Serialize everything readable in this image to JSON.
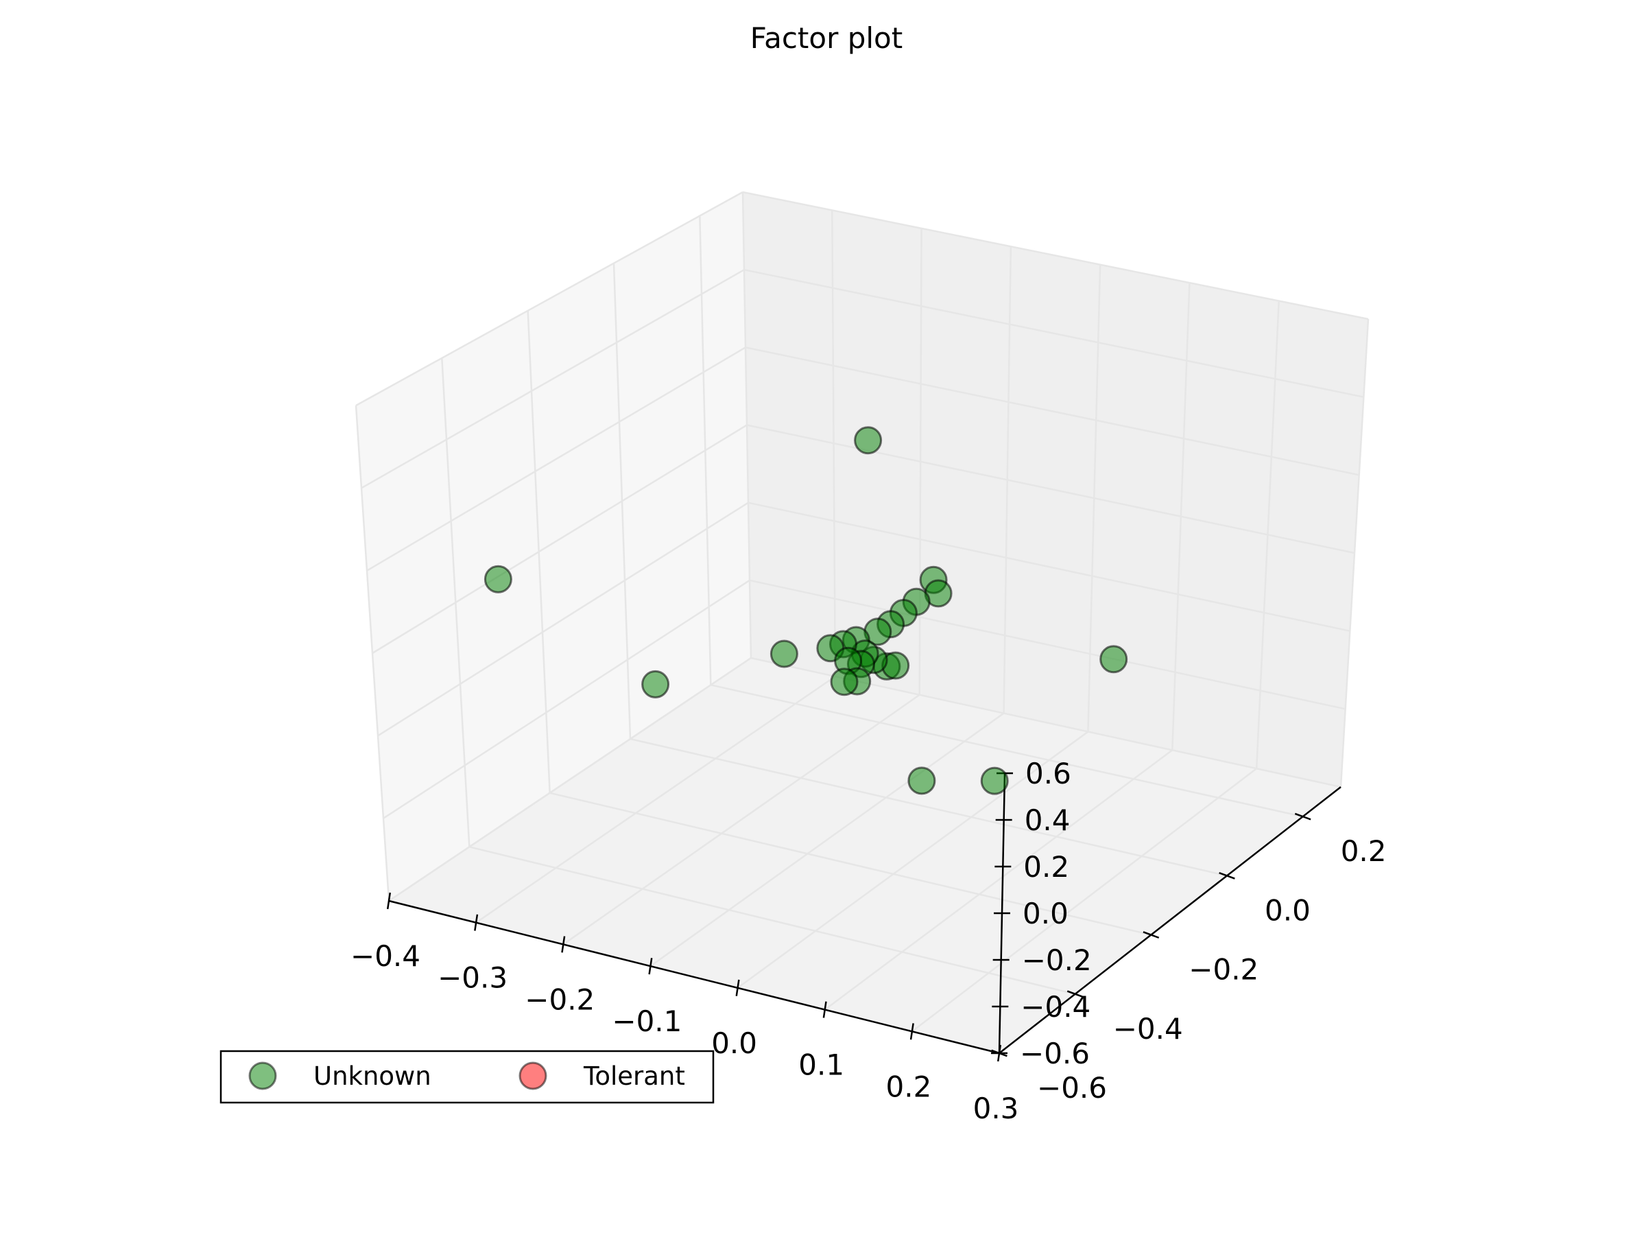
{
  "chart_data": {
    "type": "scatter",
    "projection": "3d",
    "title": "Factor plot",
    "xlim": [
      -0.4,
      0.3
    ],
    "ylim": [
      -0.6,
      0.3
    ],
    "zlim": [
      -0.6,
      0.6
    ],
    "x_ticks": [
      "−0.4",
      "−0.3",
      "−0.2",
      "−0.1",
      "0.0",
      "0.1",
      "0.2",
      "0.3"
    ],
    "y_ticks": [
      "−0.6",
      "−0.4",
      "−0.2",
      "0.0",
      "0.2"
    ],
    "z_ticks": [
      "−0.6",
      "−0.4",
      "−0.2",
      "0.0",
      "0.2",
      "0.4",
      "0.6"
    ],
    "grid": true,
    "legend": {
      "position": "bottom-left",
      "entries": [
        {
          "name": "Unknown",
          "color": "#008000"
        },
        {
          "name": "Tolerant",
          "color": "#ff0000"
        }
      ]
    },
    "series": [
      {
        "name": "Unknown",
        "color": "#008000",
        "alpha": 0.5,
        "points": [
          {
            "x": -0.05,
            "y": -0.15,
            "z": 0.55
          },
          {
            "x": -0.35,
            "y": -0.4,
            "z": 0.1
          },
          {
            "x": -0.1,
            "y": -0.25,
            "z": 0.0
          },
          {
            "x": -0.32,
            "y": -0.1,
            "z": -0.35
          },
          {
            "x": 0.05,
            "y": 0.25,
            "z": -0.35
          },
          {
            "x": 0.1,
            "y": -0.35,
            "z": -0.1
          },
          {
            "x": 0.16,
            "y": -0.3,
            "z": -0.1
          },
          {
            "x": 0.0,
            "y": -0.1,
            "z": 0.15
          },
          {
            "x": 0.01,
            "y": -0.11,
            "z": 0.13
          },
          {
            "x": -0.01,
            "y": -0.12,
            "z": 0.1
          },
          {
            "x": -0.02,
            "y": -0.13,
            "z": 0.07
          },
          {
            "x": -0.03,
            "y": -0.14,
            "z": 0.04
          },
          {
            "x": -0.04,
            "y": -0.15,
            "z": 0.02
          },
          {
            "x": -0.06,
            "y": -0.16,
            "z": -0.01
          },
          {
            "x": -0.07,
            "y": -0.17,
            "z": -0.02
          },
          {
            "x": -0.08,
            "y": -0.18,
            "z": -0.03
          },
          {
            "x": -0.06,
            "y": -0.18,
            "z": -0.05
          },
          {
            "x": -0.05,
            "y": -0.17,
            "z": -0.06
          },
          {
            "x": -0.04,
            "y": -0.16,
            "z": -0.05
          },
          {
            "x": -0.03,
            "y": -0.15,
            "z": -0.07
          },
          {
            "x": -0.02,
            "y": -0.15,
            "z": -0.06
          },
          {
            "x": -0.05,
            "y": -0.18,
            "z": -0.1
          },
          {
            "x": -0.06,
            "y": -0.19,
            "z": -0.1
          },
          {
            "x": -0.05,
            "y": -0.16,
            "z": -0.04
          }
        ]
      },
      {
        "name": "Tolerant",
        "color": "#ff0000",
        "alpha": 0.5,
        "points": []
      }
    ]
  }
}
